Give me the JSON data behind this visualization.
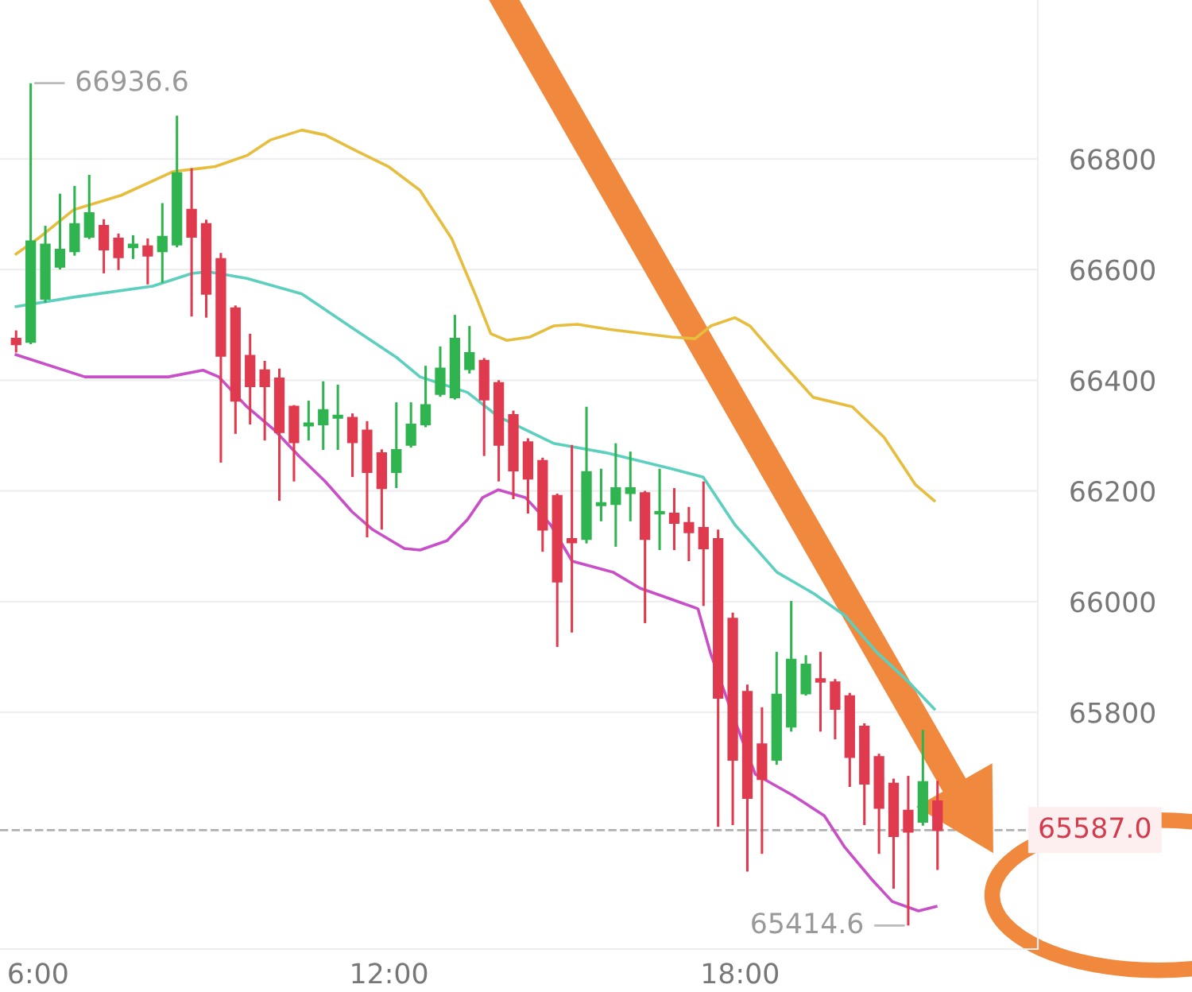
{
  "chart_data": {
    "type": "candlestick",
    "x": [
      5.625,
      5.875,
      6.125,
      6.375,
      6.625,
      6.875,
      7.125,
      7.375,
      7.625,
      7.875,
      8.125,
      8.375,
      8.625,
      8.875,
      9.125,
      9.375,
      9.625,
      9.875,
      10.125,
      10.375,
      10.625,
      10.875,
      11.125,
      11.375,
      11.625,
      11.875,
      12.125,
      12.375,
      12.625,
      12.875,
      13.125,
      13.375,
      13.625,
      13.875,
      14.125,
      14.375,
      14.625,
      14.875,
      15.125,
      15.375,
      15.625,
      15.875,
      16.125,
      16.375,
      16.625,
      16.875,
      17.125,
      17.375,
      17.625,
      17.875,
      18.125,
      18.375,
      18.625,
      18.875,
      19.125,
      19.375,
      19.625,
      19.875,
      20.125,
      20.375,
      20.625,
      20.875,
      21.125,
      21.375
    ],
    "ohlc": [
      [
        66475,
        66490,
        66450,
        66465
      ],
      [
        66469,
        66936.6,
        66465,
        66651
      ],
      [
        66547,
        66679,
        66540,
        66645
      ],
      [
        66605,
        66737,
        66600,
        66636
      ],
      [
        66633,
        66751,
        66625,
        66682
      ],
      [
        66659,
        66771,
        66655,
        66702
      ],
      [
        66679,
        66691,
        66593,
        66636
      ],
      [
        66656,
        66665,
        66599,
        66622
      ],
      [
        66640,
        66662,
        66619,
        66645
      ],
      [
        66642,
        66656,
        66573,
        66625
      ],
      [
        66633,
        66720,
        66576,
        66659
      ],
      [
        66645,
        66878,
        66640,
        66774
      ],
      [
        66708,
        66783,
        66515,
        66659
      ],
      [
        66682,
        66690,
        66513,
        66556
      ],
      [
        66619,
        66630,
        66251,
        66444
      ],
      [
        66530,
        66535,
        66303,
        66363
      ],
      [
        66444,
        66484,
        66320,
        66389
      ],
      [
        66418,
        66435,
        66291,
        66389
      ],
      [
        66403,
        66421,
        66182,
        66306
      ],
      [
        66352,
        66355,
        66217,
        66288
      ],
      [
        66318,
        66363,
        66291,
        66322
      ],
      [
        66320,
        66398,
        66274,
        66346
      ],
      [
        66332,
        66392,
        66274,
        66336
      ],
      [
        66332,
        66340,
        66225,
        66288
      ],
      [
        66309,
        66326,
        66116,
        66234
      ],
      [
        66268,
        66275,
        66130,
        66205
      ],
      [
        66234,
        66360,
        66205,
        66274
      ],
      [
        66283,
        66360,
        66278,
        66320
      ],
      [
        66320,
        66426,
        66315,
        66355
      ],
      [
        66375,
        66461,
        66370,
        66421
      ],
      [
        66369,
        66518,
        66365,
        66475
      ],
      [
        66420,
        66498,
        66412,
        66449
      ],
      [
        66435,
        66440,
        66263,
        66365
      ],
      [
        66395,
        66400,
        66217,
        66283
      ],
      [
        66337,
        66345,
        66185,
        66237
      ],
      [
        66288,
        66295,
        66159,
        66222
      ],
      [
        66254,
        66260,
        66090,
        66130
      ],
      [
        66191,
        66195,
        65918,
        66036
      ],
      [
        66113,
        66283,
        65944,
        66107
      ],
      [
        66113,
        66352,
        66105,
        66234
      ],
      [
        66174,
        66240,
        66145,
        66178
      ],
      [
        66176,
        66286,
        66099,
        66205
      ],
      [
        66196,
        66271,
        66145,
        66205
      ],
      [
        66196,
        66200,
        65961,
        66113
      ],
      [
        66159,
        66240,
        66093,
        66162
      ],
      [
        66159,
        66205,
        66093,
        66142
      ],
      [
        66142,
        66171,
        66073,
        66125
      ],
      [
        66133,
        66217,
        65992,
        66096
      ],
      [
        66113,
        66130,
        65593,
        65826
      ],
      [
        65969,
        65980,
        65596,
        65714
      ],
      [
        65837,
        65850,
        65512,
        65645
      ],
      [
        65742,
        65809,
        65544,
        65679
      ],
      [
        65714,
        65909,
        65705,
        65832
      ],
      [
        65774,
        66001,
        65765,
        65895
      ],
      [
        65834,
        65903,
        65830,
        65886
      ],
      [
        65860,
        65909,
        65765,
        65855
      ],
      [
        65854,
        65860,
        65751,
        65806
      ],
      [
        65829,
        65835,
        65665,
        65719
      ],
      [
        65774,
        65780,
        65596,
        65671
      ],
      [
        65719,
        65725,
        65544,
        65627
      ],
      [
        65671,
        65680,
        65481,
        65576
      ],
      [
        65622,
        65685,
        65414.6,
        65584
      ],
      [
        65602,
        65768,
        65595,
        65674
      ],
      [
        65639,
        65676,
        65515,
        65587
      ]
    ],
    "colors": [
      "#e03a4e",
      "#2fb44f",
      "#2fb44f",
      "#2fb44f",
      "#2fb44f",
      "#2fb44f",
      "#e03a4e",
      "#e03a4e",
      "#2fb44f",
      "#e03a4e",
      "#2fb44f",
      "#2fb44f",
      "#e03a4e",
      "#e03a4e",
      "#e03a4e",
      "#e03a4e",
      "#e03a4e",
      "#e03a4e",
      "#e03a4e",
      "#e03a4e",
      "#2fb44f",
      "#2fb44f",
      "#2fb44f",
      "#e03a4e",
      "#e03a4e",
      "#e03a4e",
      "#2fb44f",
      "#2fb44f",
      "#2fb44f",
      "#2fb44f",
      "#2fb44f",
      "#2fb44f",
      "#e03a4e",
      "#e03a4e",
      "#e03a4e",
      "#e03a4e",
      "#e03a4e",
      "#e03a4e",
      "#e03a4e",
      "#2fb44f",
      "#2fb44f",
      "#2fb44f",
      "#2fb44f",
      "#e03a4e",
      "#2fb44f",
      "#e03a4e",
      "#e03a4e",
      "#e03a4e",
      "#e03a4e",
      "#e03a4e",
      "#e03a4e",
      "#e03a4e",
      "#2fb44f",
      "#2fb44f",
      "#2fb44f",
      "#e03a4e",
      "#e03a4e",
      "#e03a4e",
      "#e03a4e",
      "#e03a4e",
      "#e03a4e",
      "#e03a4e",
      "#2fb44f",
      "#e03a4e"
    ],
    "series": [
      {
        "type": "line",
        "color": "#e6bd3c",
        "x": [
          5.625,
          6.0,
          6.61,
          7.42,
          8.31,
          9.03,
          9.57,
          9.97,
          10.51,
          10.91,
          11.45,
          11.99,
          12.53,
          13.07,
          13.47,
          13.74,
          14.01,
          14.41,
          14.81,
          15.22,
          15.75,
          16.83,
          17.23,
          17.5,
          17.91,
          18.17,
          18.71,
          19.25,
          19.92,
          20.46,
          21.0,
          21.32
        ],
        "values": [
          66628,
          66656,
          66708,
          66734,
          66777,
          66786,
          66806,
          66834,
          66852,
          66843,
          66814,
          66786,
          66743,
          66656,
          66556,
          66484,
          66472,
          66478,
          66498,
          66501,
          66492,
          66478,
          66475,
          66498,
          66513,
          66498,
          66432,
          66369,
          66352,
          66297,
          66211,
          66182
        ]
      },
      {
        "type": "line",
        "color": "#5ccfbf",
        "x": [
          5.625,
          6.61,
          7.96,
          8.63,
          8.9,
          9.57,
          10.51,
          11.32,
          12.13,
          12.53,
          13.34,
          13.87,
          14.81,
          15.75,
          16.83,
          17.37,
          17.91,
          18.63,
          19.25,
          19.79,
          20.33,
          20.86,
          21.32
        ],
        "values": [
          66533,
          66550,
          66570,
          66593,
          66596,
          66584,
          66556,
          66498,
          66441,
          66406,
          66378,
          66334,
          66286,
          66268,
          66240,
          66225,
          66139,
          66053,
          66015,
          65975,
          65909,
          65857,
          65806
        ]
      },
      {
        "type": "line",
        "color": "#c84fc8",
        "x": [
          5.625,
          6.8,
          8.23,
          8.82,
          9.09,
          9.57,
          10.03,
          10.46,
          10.91,
          11.37,
          11.72,
          12.26,
          12.53,
          12.99,
          13.34,
          13.6,
          13.87,
          14.33,
          14.76,
          15.13,
          15.83,
          16.29,
          16.83,
          17.28,
          17.5,
          17.91,
          18.26,
          18.9,
          19.44,
          19.79,
          20.25,
          20.6,
          21.05,
          21.35
        ],
        "values": [
          66446,
          66406,
          66406,
          66418,
          66406,
          66352,
          66311,
          66263,
          66217,
          66162,
          66130,
          66096,
          66093,
          66110,
          66148,
          66188,
          66202,
          66188,
          66139,
          66073,
          66053,
          66024,
          66004,
          65987,
          65905,
          65785,
          65688,
          65650,
          65613,
          65556,
          65498,
          65458,
          65441,
          65449
        ]
      }
    ],
    "xlim": [
      5.35,
      23.09
    ],
    "xticks": [
      {
        "value": 6,
        "label": "6:00"
      },
      {
        "value": 12,
        "label": "12:00"
      },
      {
        "value": 18,
        "label": "18:00"
      }
    ],
    "ylim": [
      65372,
      67087
    ],
    "yticks": [
      65800,
      66000,
      66200,
      66400,
      66600,
      66800
    ],
    "grid": "y",
    "ref_lines": [
      {
        "axis": "y",
        "value": 65587,
        "label": "65587.0",
        "color": "#b0b0b0",
        "line_style": "dashed"
      }
    ],
    "annotations": [
      {
        "text": "66936.6",
        "x": 5.875,
        "y": 66936.6
      },
      {
        "text": "65414.6",
        "x": 20.875,
        "y": 65414.6
      }
    ]
  }
}
